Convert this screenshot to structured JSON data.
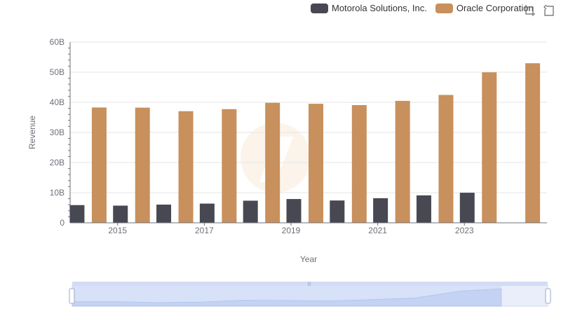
{
  "legend": {
    "items": [
      {
        "name": "Motorola Solutions, Inc.",
        "color": "#484853"
      },
      {
        "name": "Oracle Corporation",
        "color": "#c8905c"
      }
    ]
  },
  "toolbox": [
    "zoom-icon",
    "restore-icon"
  ],
  "chart_data": {
    "type": "bar",
    "xlabel": "Year",
    "ylabel": "Revenue",
    "ylim": [
      0,
      60000000000
    ],
    "y_ticks": [
      "0",
      "10B",
      "20B",
      "30B",
      "40B",
      "50B",
      "60B"
    ],
    "categories": [
      "2014",
      "2015",
      "2016",
      "2017",
      "2018",
      "2019",
      "2020",
      "2021",
      "2022",
      "2023",
      "2024"
    ],
    "x_tick_labels": [
      "2015",
      "2017",
      "2019",
      "2021",
      "2023"
    ],
    "grid": true,
    "legend_position": "top-right",
    "series": [
      {
        "name": "Motorola Solutions, Inc.",
        "color": "#484853",
        "values": [
          5880000000,
          5700000000,
          6040000000,
          6380000000,
          7340000000,
          7890000000,
          7410000000,
          8170000000,
          9110000000,
          9980000000,
          null
        ]
      },
      {
        "name": "Oracle Corporation",
        "color": "#c8905c",
        "values": [
          38280000000,
          38230000000,
          37050000000,
          37730000000,
          39830000000,
          39510000000,
          39070000000,
          40480000000,
          42440000000,
          49950000000,
          52960000000
        ]
      }
    ]
  }
}
